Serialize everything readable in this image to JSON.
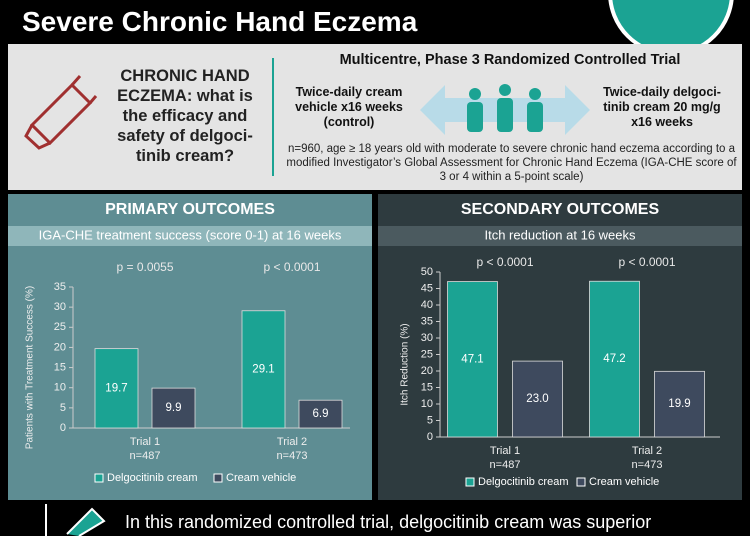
{
  "header": {
    "title": "Severe Chronic Hand Eczema"
  },
  "question": "CHRONIC HAND ECZEMA: what is the efficacy and safety of delgoci-tinib cream?",
  "trial": {
    "design": "Multicentre, Phase 3 Randomized Controlled Trial",
    "control_arm": "Twice-daily cream vehicle x16 weeks (control)",
    "treatment_arm": "Twice-daily delgoci-tinib cream 20 mg/g x16 weeks",
    "population": "n=960, age ≥ 18 years old with moderate to severe chronic hand eczema according to a modified Investigator’s Global Assessment for Chronic Hand Eczema (IGA-CHE score of 3 or 4 within a 5-point scale)"
  },
  "chart_data": [
    {
      "type": "bar",
      "title": "PRIMARY OUTCOMES",
      "subtitle": "IGA-CHE treatment success (score 0-1) at 16 weeks",
      "y_label": "Patients with Treatment Success (%)",
      "categories": [
        "Trial 1",
        "Trial 2"
      ],
      "category_sublabels": [
        "n=487",
        "n=473"
      ],
      "annotations": [
        "p = 0.0055",
        "p < 0.0001"
      ],
      "series": [
        {
          "name": "Delgocitinib cream",
          "color": "#1ba393",
          "values": [
            19.7,
            29.1
          ]
        },
        {
          "name": "Cream vehicle",
          "color": "#3e4a5e",
          "values": [
            9.9,
            6.9
          ]
        }
      ],
      "ylim": [
        0,
        35
      ],
      "yticks": [
        0,
        5,
        10,
        15,
        20,
        25,
        30,
        35
      ]
    },
    {
      "type": "bar",
      "title": "SECONDARY OUTCOMES",
      "subtitle": "Itch reduction at 16 weeks",
      "y_label": "Itch Reduction (%)",
      "categories": [
        "Trial 1",
        "Trial 2"
      ],
      "category_sublabels": [
        "n=487",
        "n=473"
      ],
      "annotations": [
        "p < 0.0001",
        "p < 0.0001"
      ],
      "series": [
        {
          "name": "Delgocitinib cream",
          "color": "#1ba393",
          "values": [
            47.1,
            47.2
          ]
        },
        {
          "name": "Cream vehicle",
          "color": "#3e4a5e",
          "values": [
            23.0,
            19.9
          ],
          "value_labels": [
            "23.0",
            "19.9"
          ]
        }
      ],
      "ylim": [
        0,
        50
      ],
      "yticks": [
        0,
        5,
        10,
        15,
        20,
        25,
        30,
        35,
        40,
        45,
        50
      ]
    }
  ],
  "conclusion": "In this randomized controlled trial, delgocitinib cream was superior"
}
